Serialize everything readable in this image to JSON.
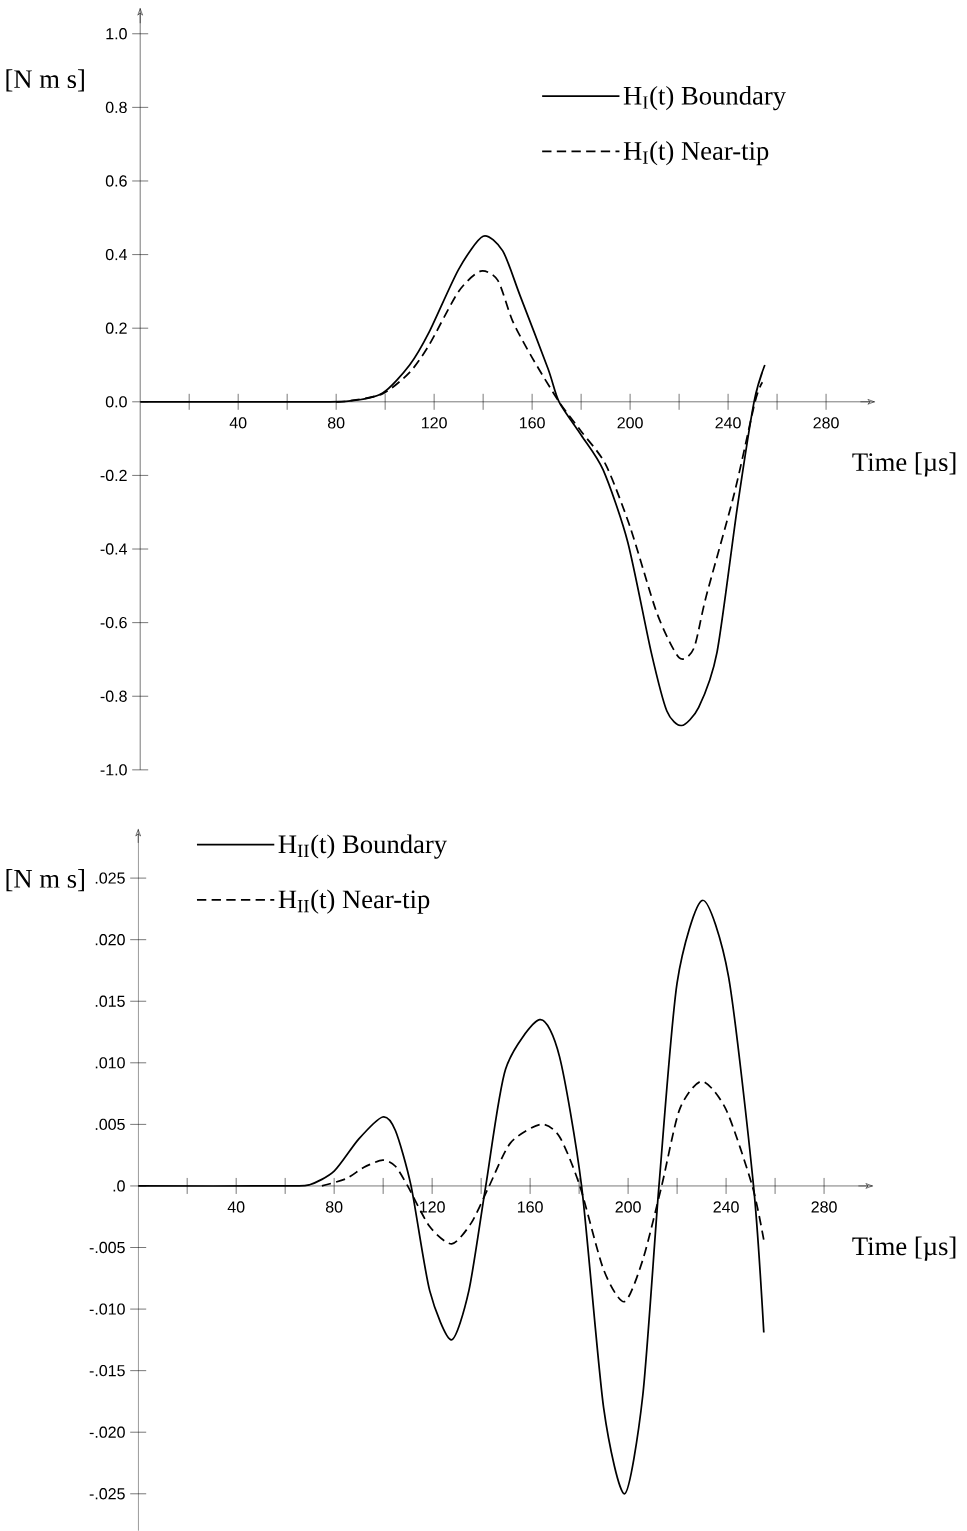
{
  "chart_data": [
    {
      "type": "line",
      "xlabel": "Time [µs]",
      "ylabel": "[N m s]",
      "xlim": [
        0,
        300
      ],
      "ylim": [
        -1.0,
        1.07
      ],
      "xticks": [
        {
          "value": 20,
          "label": null
        },
        {
          "value": 40,
          "label": "40"
        },
        {
          "value": 60,
          "label": null
        },
        {
          "value": 80,
          "label": "80"
        },
        {
          "value": 100,
          "label": null
        },
        {
          "value": 120,
          "label": "120"
        },
        {
          "value": 140,
          "label": null
        },
        {
          "value": 160,
          "label": "160"
        },
        {
          "value": 180,
          "label": null
        },
        {
          "value": 200,
          "label": "200"
        },
        {
          "value": 220,
          "label": null
        },
        {
          "value": 240,
          "label": "240"
        },
        {
          "value": 260,
          "label": null
        },
        {
          "value": 280,
          "label": "280"
        }
      ],
      "yticks": [
        {
          "value": -1.0,
          "label": "-1.0"
        },
        {
          "value": -0.8,
          "label": "-0.8"
        },
        {
          "value": -0.6,
          "label": "-0.6"
        },
        {
          "value": -0.4,
          "label": "-0.4"
        },
        {
          "value": -0.2,
          "label": "-0.2"
        },
        {
          "value": 0.0,
          "label": "0.0"
        },
        {
          "value": 0.2,
          "label": "0.2"
        },
        {
          "value": 0.4,
          "label": "0.4"
        },
        {
          "value": 0.6,
          "label": "0.6"
        },
        {
          "value": 0.8,
          "label": "0.8"
        },
        {
          "value": 1.0,
          "label": "1.0"
        }
      ],
      "legend": "top right",
      "grid": false,
      "marker": "none",
      "series": [
        {
          "name": "H$_{I}$(t) Boundary",
          "color": "#000000",
          "line_style": "solid",
          "x": [
            0,
            60,
            85,
            99,
            110,
            118,
            130,
            140,
            148,
            155,
            166.5,
            171,
            180,
            189,
            199,
            208.6,
            215,
            221,
            228,
            235.5,
            243.7,
            250.6,
            255
          ],
          "values": [
            0,
            0,
            0.002,
            0.024,
            0.1,
            0.19,
            0.36,
            0.45,
            0.41,
            0.29,
            0.09,
            0,
            -0.09,
            -0.185,
            -0.38,
            -0.68,
            -0.84,
            -0.88,
            -0.83,
            -0.68,
            -0.29,
            0,
            0.1
          ]
        },
        {
          "name": "H$_{I}$(t) Near-tip",
          "color": "#000000",
          "line_style": "dashed",
          "x": [
            80,
            85,
            99,
            110,
            118,
            130,
            139,
            146,
            152,
            160,
            171,
            180,
            190,
            200,
            211,
            220,
            226,
            231,
            242.5,
            251,
            254
          ],
          "values": [
            0,
            0.002,
            0.022,
            0.08,
            0.155,
            0.3,
            0.355,
            0.33,
            0.22,
            0.12,
            0,
            -0.08,
            -0.17,
            -0.34,
            -0.575,
            -0.695,
            -0.67,
            -0.53,
            -0.25,
            0,
            0.053
          ]
        }
      ]
    },
    {
      "type": "line",
      "xlabel": "Time [µs]",
      "ylabel": "[N m s]",
      "xlim": [
        0,
        300
      ],
      "ylim": [
        -0.028,
        0.029
      ],
      "xticks": [
        {
          "value": 20,
          "label": null
        },
        {
          "value": 40,
          "label": "40"
        },
        {
          "value": 60,
          "label": null
        },
        {
          "value": 80,
          "label": "80"
        },
        {
          "value": 100,
          "label": null
        },
        {
          "value": 120,
          "label": "120"
        },
        {
          "value": 140,
          "label": null
        },
        {
          "value": 160,
          "label": "160"
        },
        {
          "value": 180,
          "label": null
        },
        {
          "value": 200,
          "label": "200"
        },
        {
          "value": 220,
          "label": null
        },
        {
          "value": 240,
          "label": "240"
        },
        {
          "value": 260,
          "label": null
        },
        {
          "value": 280,
          "label": "280"
        }
      ],
      "yticks": [
        {
          "value": -0.025,
          "label": "-.025"
        },
        {
          "value": -0.02,
          "label": "-.020"
        },
        {
          "value": -0.015,
          "label": "-.015"
        },
        {
          "value": -0.01,
          "label": "-.010"
        },
        {
          "value": -0.005,
          "label": "-.005"
        },
        {
          "value": 0.0,
          "label": ".0"
        },
        {
          "value": 0.005,
          "label": ".005"
        },
        {
          "value": 0.01,
          "label": ".010"
        },
        {
          "value": 0.015,
          "label": ".015"
        },
        {
          "value": 0.02,
          "label": ".020"
        },
        {
          "value": 0.025,
          "label": ".025"
        }
      ],
      "legend": "top left",
      "grid": false,
      "marker": "none",
      "series": [
        {
          "name": "H$_{II}$(t) Boundary",
          "color": "#000000",
          "line_style": "solid",
          "x": [
            0,
            60,
            70,
            80,
            90,
            99.8,
            105,
            111.4,
            119,
            127.8,
            135,
            141.9,
            150,
            163.9,
            172,
            181,
            190,
            198.6,
            206,
            212.6,
            220,
            230.4,
            241,
            251.2,
            255.4
          ],
          "values": [
            0,
            0,
            0.0001,
            0.0012,
            0.0038,
            0.0056,
            0.0045,
            0,
            -0.0085,
            -0.0125,
            -0.0085,
            0,
            0.0095,
            0.0135,
            0.0105,
            0,
            -0.018,
            -0.025,
            -0.017,
            0,
            0.0165,
            0.0232,
            0.017,
            0,
            -0.0119
          ]
        },
        {
          "name": "H$_{II}$(t) Near-tip",
          "color": "#000000",
          "line_style": "dashed",
          "x": [
            75,
            85,
            92,
            99.8,
            105,
            110,
            119,
            128,
            136,
            143.3,
            152,
            164.3,
            172,
            180.3,
            190,
            198.5,
            206,
            213.7,
            221,
            230.1,
            240,
            250.7,
            255.5
          ],
          "values": [
            0,
            0.0006,
            0.0015,
            0.0021,
            0.0016,
            0,
            -0.0033,
            -0.0047,
            -0.003,
            0,
            0.0035,
            0.005,
            0.004,
            0,
            -0.0068,
            -0.0094,
            -0.006,
            0,
            0.0062,
            0.0085,
            0.0062,
            0,
            -0.0045
          ]
        }
      ]
    }
  ]
}
